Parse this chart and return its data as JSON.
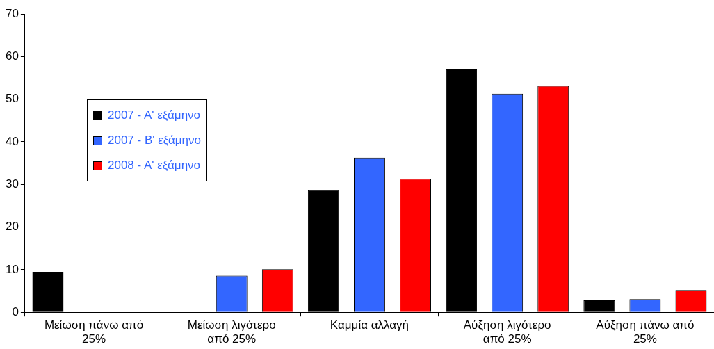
{
  "chart_data": {
    "type": "bar",
    "categories": [
      "Μείωση πάνω από 25%",
      "Μείωση λιγότερο από 25%",
      "Καμμία αλλαγή",
      "Αύξηση λιγότερο από 25%",
      "Αύξηση πάνω από 25%"
    ],
    "series": [
      {
        "name": "2007 - Α' εξάμηνο",
        "color": "#000000",
        "values": [
          9.5,
          0,
          28.6,
          57.1,
          2.8
        ]
      },
      {
        "name": "2007 - Β' εξάμηνο",
        "color": "#3366ff",
        "values": [
          0,
          8.6,
          36.3,
          51.3,
          3.1
        ]
      },
      {
        "name": "2008 - Α' εξάμηνο",
        "color": "#ff0000",
        "values": [
          0,
          10.1,
          31.3,
          53.1,
          5.2
        ]
      }
    ],
    "ylim": [
      0,
      70
    ],
    "yticks": [
      0,
      10,
      20,
      30,
      40,
      50,
      60,
      70
    ],
    "grid": false,
    "legend": "left"
  }
}
